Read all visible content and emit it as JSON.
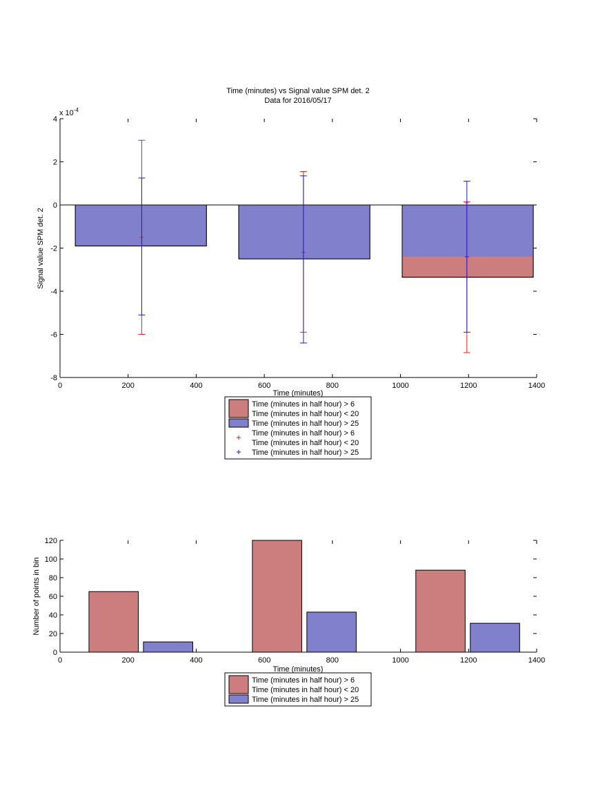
{
  "colors": {
    "red_fill": "#cc7d7d",
    "blue_fill": "#8080cc",
    "red_err": "#dd2222",
    "blue_err": "#1a1ae0"
  },
  "chart_data": [
    {
      "type": "bar",
      "title_line1": "Time (minutes) vs Signal value SPM det. 2",
      "title_line2": "Data for 2016/05/17",
      "xlabel": "Time (minutes)",
      "ylabel": "Signal value SPM det. 2",
      "exponent_label": "x 10",
      "exponent_power": "-4",
      "xlim": [
        0,
        1400
      ],
      "ylim": [
        -8,
        4
      ],
      "xticks": [
        "0",
        "200",
        "400",
        "600",
        "800",
        "1000",
        "1200",
        "1400"
      ],
      "yticks": [
        "-8",
        "-6",
        "-4",
        "-2",
        "0",
        "2",
        "4"
      ],
      "bars": [
        {
          "x0": 45,
          "x1": 430,
          "red": -1.9,
          "blue": -1.9
        },
        {
          "x0": 525,
          "x1": 910,
          "red": -2.5,
          "blue": -2.5
        },
        {
          "x0": 1005,
          "x1": 1390,
          "red": -3.35,
          "blue": -2.4
        }
      ],
      "errorbars": [
        {
          "series": "red",
          "x": 240,
          "center": -1.5,
          "low": -6.0,
          "high": 3.0
        },
        {
          "series": "blue",
          "x": 240,
          "center": -1.9,
          "low": -5.1,
          "high": 1.25
        },
        {
          "series": "red",
          "x": 715,
          "center": -2.2,
          "low": -5.9,
          "high": 1.55
        },
        {
          "series": "blue",
          "x": 715,
          "center": -2.5,
          "low": -6.4,
          "high": 1.35
        },
        {
          "series": "red",
          "x": 1195,
          "center": 0.1,
          "low": -6.85,
          "high": 0.15
        },
        {
          "series": "blue",
          "x": 1195,
          "center": -2.4,
          "low": -5.9,
          "high": 1.1
        }
      ],
      "legend": [
        {
          "marker": "red-patch",
          "lines": [
            "Time (minutes in half hour) > 6",
            "Time (minutes in half hour) < 20"
          ]
        },
        {
          "marker": "blue-patch",
          "lines": [
            "Time (minutes in half hour) > 25"
          ]
        },
        {
          "marker": "red-plus",
          "lines": [
            "Time (minutes in half hour) > 6",
            "Time (minutes in half hour) < 20"
          ]
        },
        {
          "marker": "blue-plus",
          "lines": [
            "Time (minutes in half hour) > 25"
          ]
        }
      ]
    },
    {
      "type": "bar",
      "xlabel": "Time (minutes)",
      "ylabel": "Number of points in bin",
      "xlim": [
        0,
        1400
      ],
      "ylim": [
        0,
        120
      ],
      "xticks": [
        "0",
        "200",
        "400",
        "600",
        "800",
        "1000",
        "1200",
        "1400"
      ],
      "yticks": [
        "0",
        "20",
        "40",
        "60",
        "80",
        "100",
        "120"
      ],
      "bars": [
        {
          "series": "red",
          "x0": 85,
          "x1": 230,
          "value": 65
        },
        {
          "series": "blue",
          "x0": 245,
          "x1": 390,
          "value": 11
        },
        {
          "series": "red",
          "x0": 565,
          "x1": 710,
          "value": 120
        },
        {
          "series": "blue",
          "x0": 725,
          "x1": 870,
          "value": 43
        },
        {
          "series": "red",
          "x0": 1045,
          "x1": 1190,
          "value": 88
        },
        {
          "series": "blue",
          "x0": 1205,
          "x1": 1350,
          "value": 31
        }
      ],
      "legend": [
        {
          "marker": "red-patch",
          "lines": [
            "Time (minutes in half hour) > 6",
            "Time (minutes in half hour) < 20"
          ]
        },
        {
          "marker": "blue-patch",
          "lines": [
            "Time (minutes in half hour) > 25"
          ]
        }
      ]
    }
  ]
}
